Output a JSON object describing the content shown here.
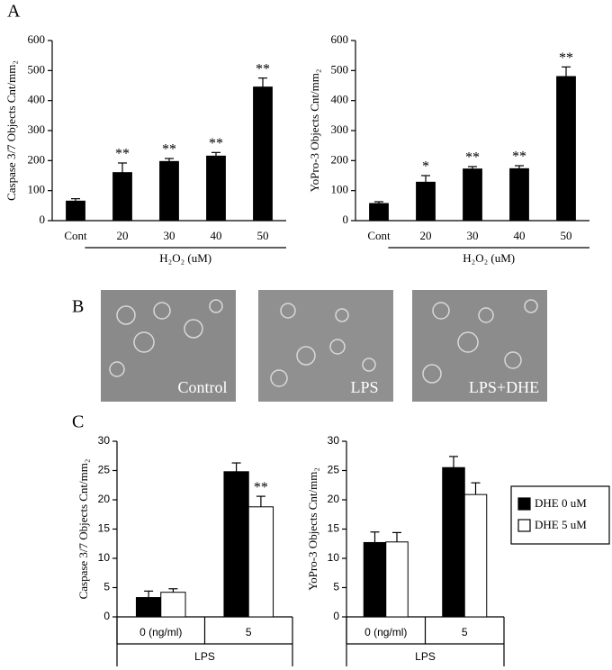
{
  "panel_labels": [
    "A",
    "B",
    "C"
  ],
  "images": [
    {
      "label": "Control"
    },
    {
      "label": "LPS"
    },
    {
      "label": "LPS+DHE"
    }
  ],
  "chart_data": [
    {
      "type": "bar",
      "ylabel": "Caspase 3/7 Objects Cnt/mm₂",
      "xlabel": "H₂O₂ (uM)",
      "categories": [
        "Cont",
        "20",
        "30",
        "40",
        "50"
      ],
      "values": [
        65,
        160,
        197,
        215,
        445
      ],
      "errors": [
        8,
        32,
        10,
        12,
        30
      ],
      "annotations": [
        null,
        "**",
        "**",
        "**",
        "**"
      ],
      "color": "#000000",
      "ylim": [
        0,
        600
      ],
      "yticks": [
        0,
        100,
        200,
        300,
        400,
        500,
        600
      ]
    },
    {
      "type": "bar",
      "ylabel": "YoPro-3 Objects Cnt/mm₂",
      "xlabel": "H₂O₂ (uM)",
      "categories": [
        "Cont",
        "20",
        "30",
        "40",
        "50"
      ],
      "values": [
        57,
        128,
        172,
        173,
        480
      ],
      "errors": [
        6,
        22,
        8,
        10,
        32
      ],
      "annotations": [
        null,
        "*",
        "**",
        "**",
        "**"
      ],
      "color": "#000000",
      "ylim": [
        0,
        600
      ],
      "yticks": [
        0,
        100,
        200,
        300,
        400,
        500,
        600
      ]
    },
    {
      "type": "bar",
      "ylabel": "Caspase 3/7 Objects Cnt/mm₂",
      "xlabel": "LPS",
      "categories": [
        "0 (ng/ml)",
        "5"
      ],
      "series": [
        {
          "color": "#000000",
          "values": [
            3.3,
            24.8
          ],
          "errors": [
            1.1,
            1.5
          ],
          "annotations": [
            null,
            null
          ]
        },
        {
          "color": "#ffffff",
          "values": [
            4.2,
            18.8
          ],
          "errors": [
            0.6,
            1.8
          ],
          "annotations": [
            null,
            "**"
          ]
        }
      ],
      "ylim": [
        0,
        30
      ],
      "yticks": [
        0,
        5,
        10,
        15,
        20,
        25,
        30
      ]
    },
    {
      "type": "bar",
      "ylabel": "YoPro-3 Objects Cnt/mm₂",
      "xlabel": "LPS",
      "categories": [
        "0 (ng/ml)",
        "5"
      ],
      "series": [
        {
          "name": "DHE 0 uM",
          "color": "#000000",
          "values": [
            12.7,
            25.5
          ],
          "errors": [
            1.8,
            1.9
          ]
        },
        {
          "name": "DHE 5 uM",
          "color": "#ffffff",
          "values": [
            12.8,
            20.9
          ],
          "errors": [
            1.6,
            2.0
          ]
        }
      ],
      "legend": "right",
      "ylim": [
        0,
        30
      ],
      "yticks": [
        0,
        5,
        10,
        15,
        20,
        25,
        30
      ]
    }
  ]
}
